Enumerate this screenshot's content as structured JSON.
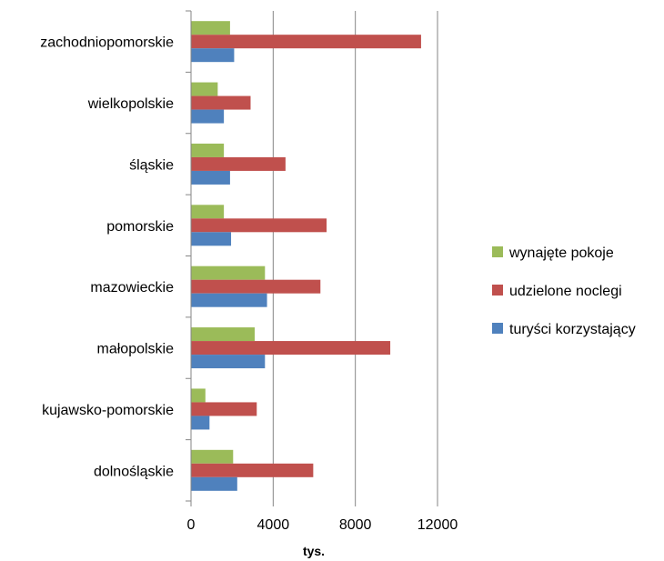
{
  "chart_data": {
    "type": "bar",
    "orientation": "horizontal",
    "categories": [
      "zachodniopomorskie",
      "wielkopolskie",
      "śląskie",
      "pomorskie",
      "mazowieckie",
      "małopolskie",
      "kujawsko-pomorskie",
      "dolnośląskie"
    ],
    "series": [
      {
        "name": "wynajęte pokoje",
        "color": "#9bbb59",
        "values": [
          1900,
          1300,
          1600,
          1600,
          3600,
          3100,
          700,
          2050
        ]
      },
      {
        "name": "udzielone noclegi",
        "color": "#c0504d",
        "values": [
          11200,
          2900,
          4600,
          6600,
          6300,
          9700,
          3200,
          5950
        ]
      },
      {
        "name": "turyści korzystający",
        "color": "#4f81bd",
        "values": [
          2100,
          1600,
          1900,
          1950,
          3700,
          3600,
          900,
          2250
        ]
      }
    ],
    "xlabel": "tys.",
    "xlim": [
      0,
      12000
    ],
    "xticks": [
      0,
      4000,
      8000,
      12000
    ],
    "grid": true,
    "legend_position": "right"
  }
}
